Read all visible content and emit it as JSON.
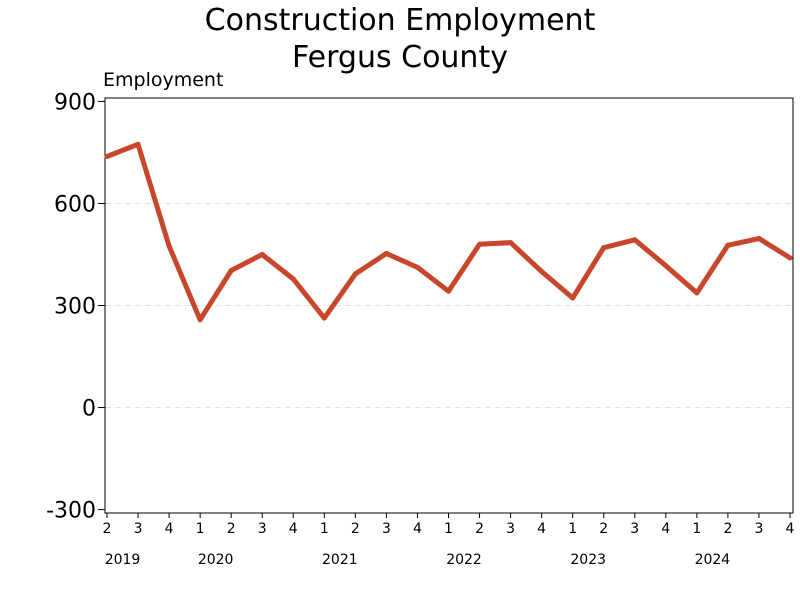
{
  "chart_data": {
    "type": "line",
    "title": [
      "Construction Employment",
      "Fergus County"
    ],
    "ylabel": "Employment",
    "ylim": [
      -310,
      910
    ],
    "yticks": [
      900,
      600,
      300,
      0,
      -300
    ],
    "grid": true,
    "quarter_labels": [
      "2",
      "3",
      "4",
      "1",
      "2",
      "3",
      "4",
      "1",
      "2",
      "3",
      "4",
      "1",
      "2",
      "3",
      "4",
      "1",
      "2",
      "3",
      "4",
      "1",
      "2",
      "3",
      "4"
    ],
    "year_labels": [
      {
        "label": "2019",
        "start": 0,
        "end": 1
      },
      {
        "label": "2020",
        "start": 2,
        "end": 5
      },
      {
        "label": "2021",
        "start": 6,
        "end": 9
      },
      {
        "label": "2022",
        "start": 10,
        "end": 13
      },
      {
        "label": "2023",
        "start": 14,
        "end": 17
      },
      {
        "label": "2024",
        "start": 18,
        "end": 21
      }
    ],
    "series": [
      {
        "color": "#c8462c",
        "values": [
          738,
          774,
          475,
          258,
          403,
          450,
          378,
          263,
          393,
          453,
          412,
          342,
          480,
          485,
          400,
          322,
          470,
          493,
          417,
          337,
          477,
          497,
          440
        ]
      }
    ]
  }
}
